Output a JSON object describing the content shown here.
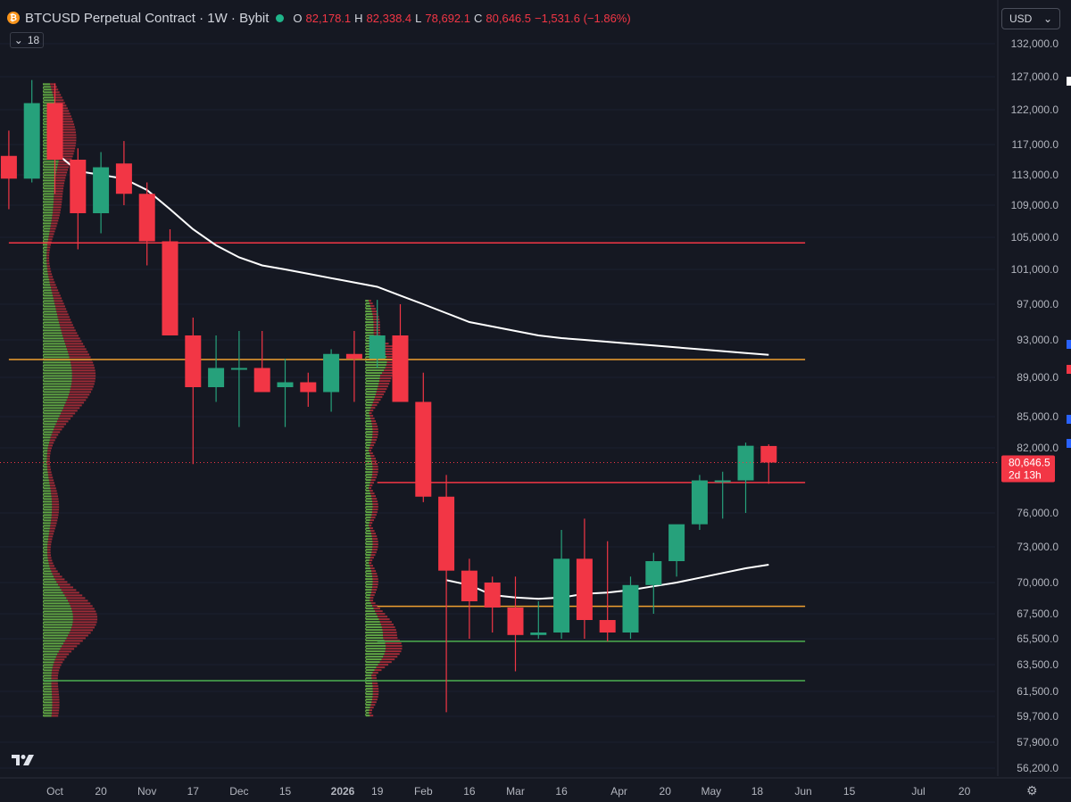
{
  "header": {
    "symbol_title": "BTCUSD Perpetual Contract · 1W · Bybit",
    "ohlc": [
      {
        "label": "O",
        "value": "82,178.1"
      },
      {
        "label": "H",
        "value": "82,338.4"
      },
      {
        "label": "L",
        "value": "78,692.1"
      },
      {
        "label": "C",
        "value": "80,646.5"
      },
      {
        "label": "",
        "value": "−1,531.6 (−1.86%)"
      }
    ],
    "indicators_count": "18",
    "currency": "USD"
  },
  "colors": {
    "background": "#151822",
    "bull": "#26a17b",
    "bear": "#f23645",
    "ma_line": "#ffffff",
    "resistance_red": "#f23645",
    "level_orange": "#f0a030",
    "support_green": "#4caf50",
    "vp_green": "#6fbf4a",
    "vp_red": "#c0313c"
  },
  "chart_data": {
    "type": "candlestick",
    "title": "",
    "xlabel": "",
    "ylabel": "",
    "price_axis_labels": [
      "132,000.0",
      "127,000.0",
      "122,000.0",
      "117,000.0",
      "113,000.0",
      "109,000.0",
      "105,000.0",
      "101,000.0",
      "97,000.0",
      "93,000.0",
      "89,000.0",
      "85,000.0",
      "82,000.0",
      "76,000.0",
      "73,000.0",
      "70,000.0",
      "67,500.0",
      "65,500.0",
      "63,500.0",
      "61,500.0",
      "59,700.0",
      "57,900.0",
      "56,200.0"
    ],
    "time_axis_labels": [
      {
        "label": "Oct",
        "x": 0
      },
      {
        "label": "20",
        "x": 2
      },
      {
        "label": "Nov",
        "x": 4
      },
      {
        "label": "17",
        "x": 6
      },
      {
        "label": "Dec",
        "x": 8
      },
      {
        "label": "15",
        "x": 10
      },
      {
        "label": "2026",
        "x": 12.5,
        "bold": true
      },
      {
        "label": "19",
        "x": 14
      },
      {
        "label": "Feb",
        "x": 16
      },
      {
        "label": "16",
        "x": 18
      },
      {
        "label": "Mar",
        "x": 20
      },
      {
        "label": "16",
        "x": 22
      },
      {
        "label": "Apr",
        "x": 24.5
      },
      {
        "label": "20",
        "x": 26.5
      },
      {
        "label": "May",
        "x": 28.5
      },
      {
        "label": "18",
        "x": 30.5
      },
      {
        "label": "Jun",
        "x": 32.5
      },
      {
        "label": "15",
        "x": 34.5
      },
      {
        "label": "Jul",
        "x": 37.5
      },
      {
        "label": "20",
        "x": 39.5
      }
    ],
    "candles": [
      {
        "x": -2,
        "o": 115500,
        "h": 119000,
        "l": 108500,
        "c": 112500
      },
      {
        "x": -1,
        "o": 112500,
        "h": 126500,
        "l": 112000,
        "c": 123000
      },
      {
        "x": 0,
        "o": 123000,
        "h": 126000,
        "l": 110500,
        "c": 115000
      },
      {
        "x": 1,
        "o": 115000,
        "h": 116500,
        "l": 103500,
        "c": 108000
      },
      {
        "x": 2,
        "o": 108000,
        "h": 116000,
        "l": 105500,
        "c": 114000
      },
      {
        "x": 3,
        "o": 114500,
        "h": 117500,
        "l": 109000,
        "c": 110500
      },
      {
        "x": 4,
        "o": 110500,
        "h": 112000,
        "l": 101500,
        "c": 104500
      },
      {
        "x": 5,
        "o": 104500,
        "h": 106000,
        "l": 94000,
        "c": 93500
      },
      {
        "x": 6,
        "o": 93500,
        "h": 95500,
        "l": 80500,
        "c": 88000
      },
      {
        "x": 7,
        "o": 88000,
        "h": 93500,
        "l": 86500,
        "c": 90000
      },
      {
        "x": 8,
        "o": 90000,
        "h": 94000,
        "l": 84000,
        "c": 90000
      },
      {
        "x": 9,
        "o": 90000,
        "h": 94000,
        "l": 87500,
        "c": 87500
      },
      {
        "x": 10,
        "o": 88000,
        "h": 91000,
        "l": 84000,
        "c": 88500
      },
      {
        "x": 11,
        "o": 88500,
        "h": 89500,
        "l": 86000,
        "c": 87500
      },
      {
        "x": 12,
        "o": 87500,
        "h": 92000,
        "l": 85500,
        "c": 91500
      },
      {
        "x": 13,
        "o": 91500,
        "h": 94000,
        "l": 86500,
        "c": 91000
      },
      {
        "x": 14,
        "o": 91000,
        "h": 97500,
        "l": 90000,
        "c": 93500
      },
      {
        "x": 15,
        "o": 93500,
        "h": 97000,
        "l": 86500,
        "c": 86500
      },
      {
        "x": 16,
        "o": 86500,
        "h": 89500,
        "l": 77000,
        "c": 77500
      },
      {
        "x": 17,
        "o": 77500,
        "h": 79500,
        "l": 60000,
        "c": 71000
      },
      {
        "x": 18,
        "o": 71000,
        "h": 72000,
        "l": 65500,
        "c": 68500
      },
      {
        "x": 19,
        "o": 70000,
        "h": 70500,
        "l": 66000,
        "c": 68000
      },
      {
        "x": 20,
        "o": 68000,
        "h": 70500,
        "l": 63000,
        "c": 65800
      },
      {
        "x": 21,
        "o": 65800,
        "h": 68500,
        "l": 65500,
        "c": 66000
      },
      {
        "x": 22,
        "o": 66000,
        "h": 74500,
        "l": 65500,
        "c": 72000
      },
      {
        "x": 23,
        "o": 72000,
        "h": 75500,
        "l": 65500,
        "c": 67000
      },
      {
        "x": 24,
        "o": 67000,
        "h": 73500,
        "l": 65300,
        "c": 66000
      },
      {
        "x": 25,
        "o": 66000,
        "h": 70500,
        "l": 65500,
        "c": 69800
      },
      {
        "x": 26,
        "o": 69800,
        "h": 72500,
        "l": 67500,
        "c": 71800
      },
      {
        "x": 27,
        "o": 71800,
        "h": 74500,
        "l": 70500,
        "c": 75000
      },
      {
        "x": 28,
        "o": 75000,
        "h": 79500,
        "l": 74500,
        "c": 79000
      },
      {
        "x": 29,
        "o": 79000,
        "h": 79800,
        "l": 75500,
        "c": 79000
      },
      {
        "x": 30,
        "o": 79000,
        "h": 82500,
        "l": 76000,
        "c": 82200
      },
      {
        "x": 31,
        "o": 82178.1,
        "h": 82338.4,
        "l": 78692.1,
        "c": 80646.5
      }
    ],
    "moving_average": [
      [
        0,
        116000
      ],
      [
        1,
        113500
      ],
      [
        2,
        113000
      ],
      [
        3,
        112500
      ],
      [
        4,
        111000
      ],
      [
        5,
        108500
      ],
      [
        6,
        106000
      ],
      [
        7,
        104000
      ],
      [
        8,
        102500
      ],
      [
        9,
        101500
      ],
      [
        10,
        101000
      ],
      [
        11,
        100500
      ],
      [
        12,
        100000
      ],
      [
        13,
        99500
      ],
      [
        14,
        99000
      ],
      [
        15,
        98000
      ],
      [
        16,
        97000
      ],
      [
        17,
        96000
      ],
      [
        18,
        95000
      ],
      [
        19,
        94500
      ],
      [
        20,
        94000
      ],
      [
        21,
        93500
      ],
      [
        22,
        93200
      ],
      [
        23,
        93000
      ],
      [
        24,
        92800
      ],
      [
        25,
        92600
      ],
      [
        26,
        92400
      ],
      [
        27,
        92200
      ],
      [
        28,
        92000
      ],
      [
        29,
        91800
      ],
      [
        30,
        91600
      ],
      [
        31,
        91400
      ]
    ],
    "ma2": [
      [
        17,
        70200
      ],
      [
        18,
        69800
      ],
      [
        19,
        69000
      ],
      [
        20,
        68800
      ],
      [
        21,
        68700
      ],
      [
        22,
        68800
      ],
      [
        23,
        69100
      ],
      [
        24,
        69200
      ],
      [
        25,
        69400
      ],
      [
        26,
        69700
      ],
      [
        27,
        70000
      ],
      [
        28,
        70400
      ],
      [
        29,
        70800
      ],
      [
        30,
        71200
      ],
      [
        31,
        71500
      ]
    ],
    "horizontal_levels": [
      {
        "price": 104300,
        "color": "#f23645",
        "x0": -2,
        "x1": 32
      },
      {
        "price": 90900,
        "color": "#f0a030",
        "x0": -2,
        "x1": 32
      },
      {
        "price": 78800,
        "color": "#f23645",
        "x0": 14,
        "x1": 32
      },
      {
        "price": 68100,
        "color": "#f0a030",
        "x0": 14,
        "x1": 32
      },
      {
        "price": 65300,
        "color": "#4caf50",
        "x0": 14,
        "x1": 32
      },
      {
        "price": 62300,
        "color": "#4caf50",
        "x0": -0.5,
        "x1": 32
      }
    ],
    "volume_profiles": [
      {
        "anchor_x": -0.5,
        "top": 126000,
        "bottom": 59700
      },
      {
        "anchor_x": 13.5,
        "top": 97500,
        "bottom": 59700
      }
    ],
    "last_price_label": "80,646.5",
    "countdown_label": "2d 13h",
    "last_price": 80646.5
  }
}
